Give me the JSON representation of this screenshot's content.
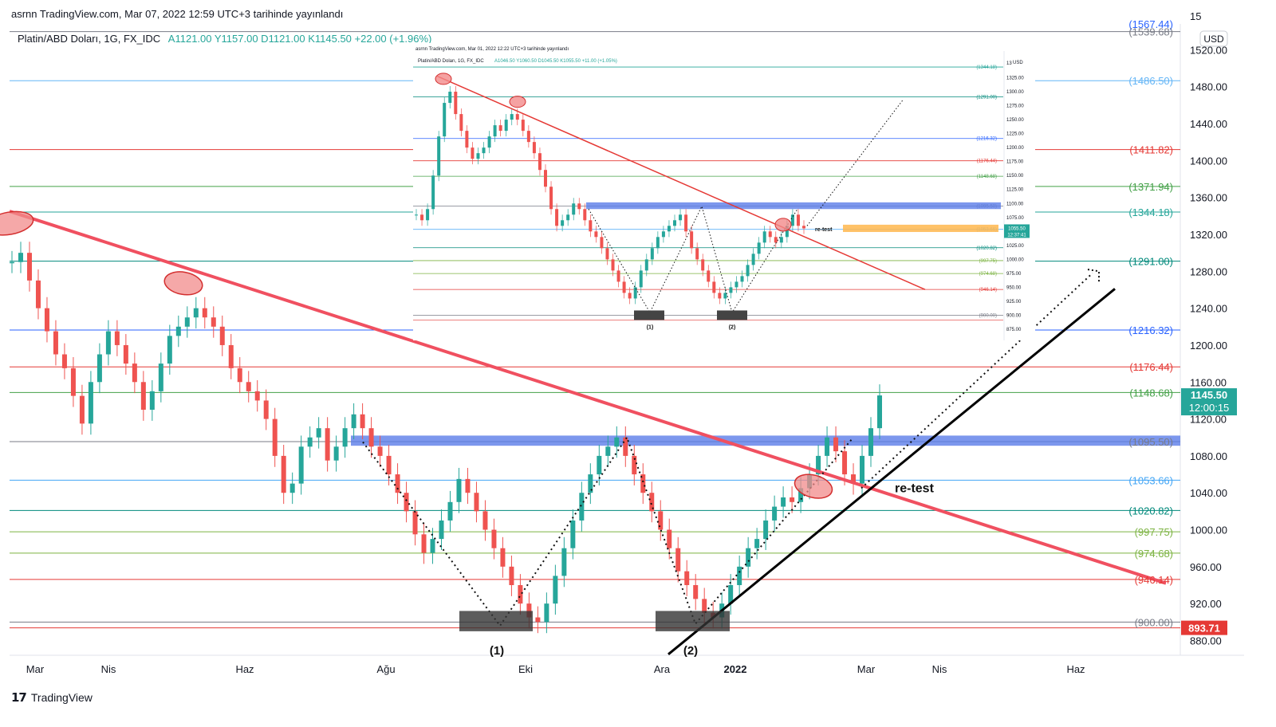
{
  "header": {
    "publish": "asrnn TradingView.com, Mar 07, 2022 12:59 UTC+3 tarihinde yayınlandı",
    "symbol": "Platin/ABD Doları, 1G, FX_IDC",
    "ohlc": "A1121.00  Y1157.00  D1121.00  K1145.50  +22.00 (+1.96%)",
    "currency": "USD"
  },
  "footer": {
    "brand": "TradingView"
  },
  "chart_data": {
    "type": "line",
    "xlabel": "",
    "ylabel": "",
    "x_ticks": [
      "Mar",
      "Nis",
      "Haz",
      "Ağu",
      "Eki",
      "Ara",
      "2022",
      "Mar",
      "Nis",
      "Haz"
    ],
    "y_ticks": [
      880,
      920,
      960,
      1000,
      1040,
      1080,
      1120,
      1160,
      1200,
      1240,
      1280,
      1320,
      1360,
      1400,
      1440,
      1480,
      1520
    ],
    "y_top_tick": "15",
    "ylim": [
      864,
      1548
    ],
    "levels": [
      {
        "value": 1567.44,
        "label": "(1567.44)",
        "color": "#2962ff"
      },
      {
        "value": 1539.68,
        "label": "(1539.68)",
        "color": "#787b86"
      },
      {
        "value": 1486.5,
        "label": "(1486.50)",
        "color": "#64b5f6"
      },
      {
        "value": 1411.82,
        "label": "(1411.82)",
        "color": "#e53935"
      },
      {
        "value": 1371.94,
        "label": "(1371.94)",
        "color": "#43a047"
      },
      {
        "value": 1344.18,
        "label": "(1344.18)",
        "color": "#26a69a"
      },
      {
        "value": 1291.0,
        "label": "(1291.00)",
        "color": "#00897b"
      },
      {
        "value": 1216.32,
        "label": "(1216.32)",
        "color": "#2962ff"
      },
      {
        "value": 1176.44,
        "label": "(1176.44)",
        "color": "#e53935"
      },
      {
        "value": 1148.68,
        "label": "(1148.68)",
        "color": "#43a047"
      },
      {
        "value": 1095.5,
        "label": "(1095.50)",
        "color": "#787b86"
      },
      {
        "value": 1053.66,
        "label": "(1053.66)",
        "color": "#42a5f5"
      },
      {
        "value": 1020.82,
        "label": "(1020.82)",
        "color": "#00897b"
      },
      {
        "value": 997.75,
        "label": "(997.75)",
        "color": "#7cb342"
      },
      {
        "value": 974.68,
        "label": "(974.68)",
        "color": "#7cb342"
      },
      {
        "value": 946.14,
        "label": "(946.14)",
        "color": "#e53935"
      },
      {
        "value": 900.0,
        "label": "(900.00)",
        "color": "#787b86"
      },
      {
        "value": 893.71,
        "label": "893.71",
        "color": "#e53935"
      }
    ],
    "price": {
      "value": 1145.5,
      "label": "1145.50",
      "countdown": "12:00:15",
      "color": "#26a69a"
    },
    "low_marker": {
      "value": 893.71,
      "label": "893.71",
      "color": "#e53935"
    },
    "closes": [
      1290,
      1300,
      1270,
      1240,
      1215,
      1190,
      1175,
      1145,
      1115,
      1160,
      1190,
      1215,
      1200,
      1180,
      1160,
      1130,
      1150,
      1180,
      1210,
      1220,
      1230,
      1240,
      1230,
      1220,
      1200,
      1175,
      1160,
      1150,
      1140,
      1120,
      1080,
      1040,
      1050,
      1090,
      1100,
      1110,
      1075,
      1090,
      1110,
      1125,
      1110,
      1090,
      1080,
      1060,
      1040,
      1020,
      995,
      975,
      990,
      1010,
      1030,
      1055,
      1040,
      1020,
      1000,
      980,
      960,
      940,
      920,
      905,
      900,
      920,
      950,
      980,
      1010,
      1040,
      1060,
      1080,
      1090,
      1100,
      1080,
      1060,
      1040,
      1020,
      1000,
      980,
      955,
      940,
      925,
      910,
      905,
      920,
      940,
      960,
      980,
      990,
      1010,
      1025,
      1035,
      1030,
      1045,
      1060,
      1080,
      1100,
      1085,
      1060,
      1050,
      1080,
      1110,
      1145.5
    ],
    "annotations": [
      "(1)",
      "(2)",
      "re-test"
    ],
    "inset": {
      "publish": "asrnn TradingView.com, Mar 01, 2022 12:22 UTC+3 tarihinde yayınlandı",
      "symbol": "Platin/ABD Doları, 1G, FX_IDC",
      "ohlc": "A1046.50 Y1060.50 D1045.50 K1055.50 +11.00 (+1.05%)",
      "currency": "USD",
      "y_ticks": [
        875,
        900,
        925,
        950,
        975,
        1000,
        1025,
        1050,
        1075,
        1100,
        1125,
        1150,
        1175,
        1200,
        1225,
        1250,
        1275,
        1300,
        1325
      ],
      "y_top_tick": "13",
      "levels": [
        {
          "value": 1344.18,
          "label": "(1344.18)",
          "color": "#26a69a"
        },
        {
          "value": 1291.0,
          "label": "(1291.00)",
          "color": "#00897b"
        },
        {
          "value": 1216.32,
          "label": "(1216.32)",
          "color": "#2962ff"
        },
        {
          "value": 1176.44,
          "label": "(1176.44)",
          "color": "#e53935"
        },
        {
          "value": 1148.68,
          "label": "(1148.68)",
          "color": "#43a047"
        },
        {
          "value": 1095.5,
          "label": "(1095.50)",
          "color": "#787b86"
        },
        {
          "value": 1053.66,
          "label": "(1053.66)",
          "color": "#42a5f5"
        },
        {
          "value": 1020.82,
          "label": "(1020.82)",
          "color": "#00897b"
        },
        {
          "value": 997.75,
          "label": "(997.75)",
          "color": "#7cb342"
        },
        {
          "value": 974.68,
          "label": "(974.68)",
          "color": "#7cb342"
        },
        {
          "value": 946.14,
          "label": "(946.14)",
          "color": "#e53935"
        },
        {
          "value": 900.0,
          "label": "(900.00)",
          "color": "#787b86"
        }
      ],
      "price": {
        "value": 1055.5,
        "label": "1055.50",
        "countdown": "12:37:41"
      },
      "closes": [
        1080,
        1070,
        1090,
        1150,
        1220,
        1280,
        1300,
        1260,
        1230,
        1200,
        1180,
        1190,
        1200,
        1220,
        1240,
        1230,
        1250,
        1260,
        1250,
        1230,
        1210,
        1190,
        1160,
        1130,
        1090,
        1060,
        1070,
        1080,
        1100,
        1090,
        1070,
        1050,
        1040,
        1020,
        1000,
        980,
        960,
        940,
        930,
        950,
        980,
        1000,
        1020,
        1040,
        1050,
        1060,
        1070,
        1080,
        1050,
        1020,
        1000,
        980,
        960,
        940,
        930,
        940,
        950,
        960,
        970,
        990,
        1010,
        1030,
        1050,
        1040,
        1030,
        1040,
        1060,
        1080,
        1060,
        1055.5
      ],
      "annotations": [
        "(1)",
        "(2)",
        "re-test"
      ]
    }
  }
}
